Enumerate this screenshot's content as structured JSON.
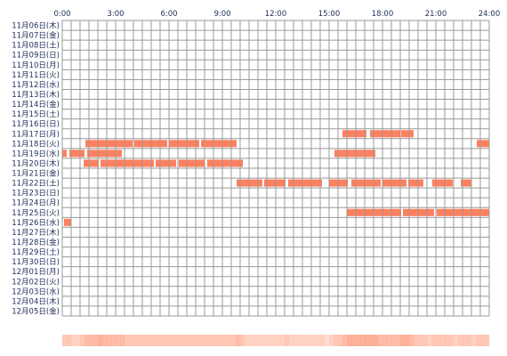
{
  "chart_data": {
    "type": "timeline",
    "x_ticks": [
      "0:00",
      "3:00",
      "6:00",
      "9:00",
      "12:00",
      "15:00",
      "18:00",
      "21:00",
      "24:00"
    ],
    "x_range_hours": [
      0,
      24
    ],
    "grid": true,
    "colors": {
      "bar": "#ff7f5e",
      "grid": "#9a9a9a",
      "text": "#1f2d5a",
      "heat_base": "#ffe4d8"
    },
    "rows": [
      {
        "label": "11月06日(木)",
        "segments": []
      },
      {
        "label": "11月07日(金)",
        "segments": []
      },
      {
        "label": "11月08日(土)",
        "segments": []
      },
      {
        "label": "11月09日(日)",
        "segments": []
      },
      {
        "label": "11月10日(月)",
        "segments": []
      },
      {
        "label": "11月11日(火)",
        "segments": []
      },
      {
        "label": "11月12日(水)",
        "segments": []
      },
      {
        "label": "11月13日(木)",
        "segments": []
      },
      {
        "label": "11月14日(金)",
        "segments": []
      },
      {
        "label": "11月15日(土)",
        "segments": []
      },
      {
        "label": "11月16日(日)",
        "segments": []
      },
      {
        "label": "11月17日(月)",
        "segments": [
          [
            15.75,
            17.1
          ],
          [
            17.3,
            19.0
          ],
          [
            19.05,
            19.75
          ]
        ]
      },
      {
        "label": "11月18日(火)",
        "segments": [
          [
            1.3,
            3.95
          ],
          [
            4.05,
            5.9
          ],
          [
            6.0,
            7.7
          ],
          [
            7.8,
            9.8
          ],
          [
            23.3,
            24.0
          ]
        ]
      },
      {
        "label": "11月19日(水)",
        "segments": [
          [
            0.0,
            0.25
          ],
          [
            0.4,
            1.25
          ],
          [
            1.4,
            3.35
          ],
          [
            15.3,
            17.6
          ]
        ]
      },
      {
        "label": "11月20日(木)",
        "segments": [
          [
            1.2,
            2.05
          ],
          [
            2.15,
            5.15
          ],
          [
            5.25,
            6.4
          ],
          [
            6.55,
            8.0
          ],
          [
            8.15,
            10.15
          ]
        ]
      },
      {
        "label": "11月21日(金)",
        "segments": []
      },
      {
        "label": "11月22日(土)",
        "segments": [
          [
            9.8,
            11.25
          ],
          [
            11.35,
            12.55
          ],
          [
            12.7,
            14.6
          ],
          [
            15.0,
            16.05
          ],
          [
            16.25,
            17.9
          ],
          [
            18.0,
            19.35
          ],
          [
            19.45,
            20.3
          ],
          [
            20.8,
            21.95
          ],
          [
            22.4,
            23.0
          ]
        ]
      },
      {
        "label": "11月23日(日)",
        "segments": []
      },
      {
        "label": "11月24日(月)",
        "segments": []
      },
      {
        "label": "11月25日(火)",
        "segments": [
          [
            16.0,
            19.05
          ],
          [
            19.15,
            20.9
          ],
          [
            21.05,
            24.0
          ]
        ]
      },
      {
        "label": "11月26日(水)",
        "segments": [
          [
            0.1,
            0.5
          ]
        ]
      },
      {
        "label": "11月27日(木)",
        "segments": []
      },
      {
        "label": "11月28日(金)",
        "segments": []
      },
      {
        "label": "11月29日(土)",
        "segments": []
      },
      {
        "label": "11月30日(日)",
        "segments": []
      },
      {
        "label": "12月01日(月)",
        "segments": []
      },
      {
        "label": "12月02日(火)",
        "segments": []
      },
      {
        "label": "12月03日(水)",
        "segments": []
      },
      {
        "label": "12月04日(木)",
        "segments": []
      },
      {
        "label": "12月05日(金)",
        "segments": []
      }
    ]
  }
}
